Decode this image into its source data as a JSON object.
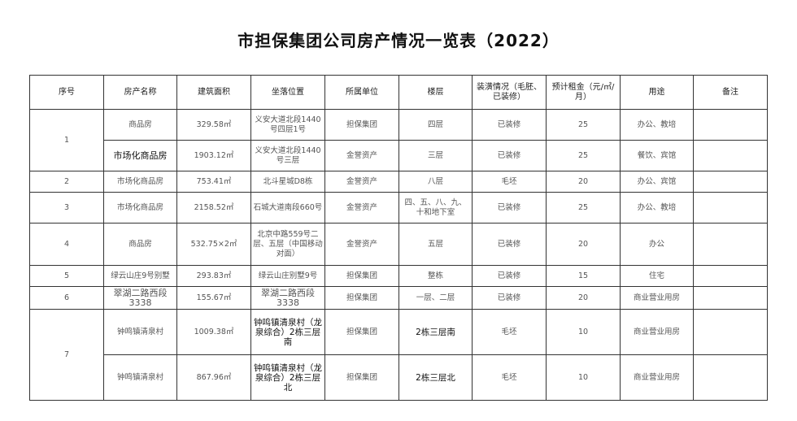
{
  "title": "市担保集团公司房产情况一览表（2022）",
  "headers": [
    "序号",
    "房产名称",
    "建筑面积",
    "坐落位置",
    "所属单位",
    "楼层",
    "装潢情况（毛胚、已装修）",
    "预计租金（元/㎡/月）",
    "用途",
    "备注"
  ],
  "rows": [
    {
      "no": "1",
      "name": "商品房",
      "area": "329.58㎡",
      "location": "义安大道北段1440号四层1号",
      "owner": "担保集团",
      "floor": "四层",
      "decor": "已装修",
      "rent": "25",
      "use": "办公、教培",
      "note": ""
    },
    {
      "no": "",
      "name": "市场化商品房",
      "area": "1903.12㎡",
      "location": "义安大道北段1440号三层",
      "owner": "金誉资产",
      "floor": "三层",
      "decor": "已装修",
      "rent": "25",
      "use": "餐饮、宾馆",
      "note": ""
    },
    {
      "no": "2",
      "name": "市场化商品房",
      "area": "753.41㎡",
      "location": "北斗星城D8栋",
      "owner": "金誉资产",
      "floor": "八层",
      "decor": "毛坯",
      "rent": "20",
      "use": "办公、宾馆",
      "note": ""
    },
    {
      "no": "3",
      "name": "市场化商品房",
      "area": "2158.52㎡",
      "location": "石城大道南段660号",
      "owner": "金誉资产",
      "floor": "四、五、八、九、十和地下室",
      "decor": "已装修",
      "rent": "25",
      "use": "办公、教培",
      "note": ""
    },
    {
      "no": "4",
      "name": "商品房",
      "area": "532.75×2㎡",
      "location": "北京中路559号二层、五层（中国移动对面）",
      "owner": "金誉资产",
      "floor": "五层",
      "decor": "已装修",
      "rent": "20",
      "use": "办公",
      "note": ""
    },
    {
      "no": "5",
      "name": "绿云山庄9号别墅",
      "area": "293.83㎡",
      "location": "绿云山庄别墅9号",
      "owner": "担保集团",
      "floor": "整栋",
      "decor": "已装修",
      "rent": "15",
      "use": "住宅",
      "note": ""
    },
    {
      "no": "6",
      "name": "翠湖二路西段3338",
      "area": "155.67㎡",
      "location": "翠湖二路西段3338",
      "owner": "担保集团",
      "floor": "一层、二层",
      "decor": "已装修",
      "rent": "20",
      "use": "商业营业用房",
      "note": ""
    },
    {
      "no": "7",
      "name": "钟鸣镇清泉村",
      "area": "1009.38㎡",
      "location": "钟鸣镇清泉村（龙泉综合）2栋三层南",
      "owner": "担保集团",
      "floor": "2栋三层南",
      "decor": "毛坯",
      "rent": "10",
      "use": "商业营业用房",
      "note": ""
    },
    {
      "no": "",
      "name": "钟鸣镇清泉村",
      "area": "867.96㎡",
      "location": "钟鸣镇清泉村（龙泉综合）2栋三层北",
      "owner": "担保集团",
      "floor": "2栋三层北",
      "decor": "毛坯",
      "rent": "10",
      "use": "商业营业用房",
      "note": ""
    }
  ]
}
